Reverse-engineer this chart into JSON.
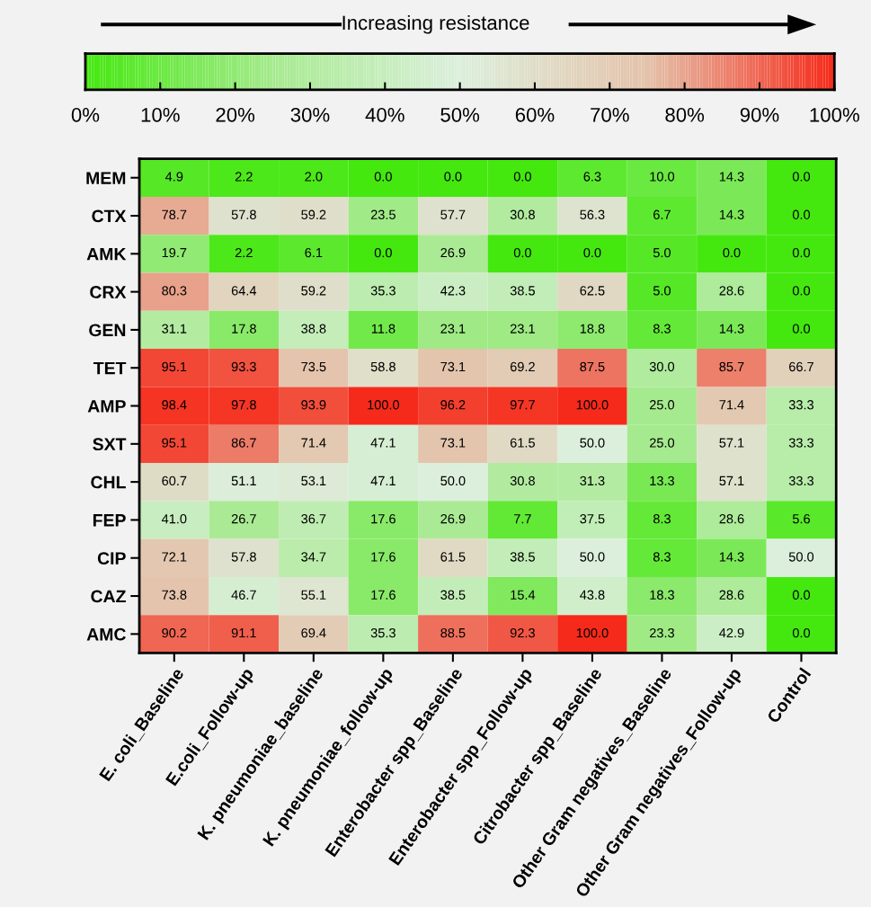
{
  "chart_data": {
    "type": "heatmap",
    "clabel": "Increasing resistance",
    "categories": [
      "E. coli_Baseline",
      "E.coli_Follow-up",
      "K. pneumoniae_baseline",
      "K. pneumoniae_follow-up",
      "Enterobacter spp_Baseline",
      "Enterobacter spp_Follow-up",
      "Citrobacter spp_Baseline",
      "Other Gram negatives_Baseline",
      "Other Gram negatives_Follow-up",
      "Control"
    ],
    "y_categories": [
      "MEM",
      "CTX",
      "AMK",
      "CRX",
      "GEN",
      "TET",
      "AMP",
      "SXT",
      "CHL",
      "FEP",
      "CIP",
      "CAZ",
      "AMC"
    ],
    "cells": [
      [
        4.9,
        2.2,
        2.0,
        0.0,
        0.0,
        0.0,
        6.3,
        10.0,
        14.3,
        0.0
      ],
      [
        78.7,
        57.8,
        59.2,
        23.5,
        57.7,
        30.8,
        56.3,
        6.7,
        14.3,
        0.0
      ],
      [
        19.7,
        2.2,
        6.1,
        0.0,
        26.9,
        0.0,
        0.0,
        5.0,
        0.0,
        0.0
      ],
      [
        80.3,
        64.4,
        59.2,
        35.3,
        42.3,
        38.5,
        62.5,
        5.0,
        28.6,
        0.0
      ],
      [
        31.1,
        17.8,
        38.8,
        11.8,
        23.1,
        23.1,
        18.8,
        8.3,
        14.3,
        0.0
      ],
      [
        95.1,
        93.3,
        73.5,
        58.8,
        73.1,
        69.2,
        87.5,
        30.0,
        85.7,
        66.7
      ],
      [
        98.4,
        97.8,
        93.9,
        100.0,
        96.2,
        97.7,
        100.0,
        25.0,
        71.4,
        33.3
      ],
      [
        95.1,
        86.7,
        71.4,
        47.1,
        73.1,
        61.5,
        50.0,
        25.0,
        57.1,
        33.3
      ],
      [
        60.7,
        51.1,
        53.1,
        47.1,
        50.0,
        30.8,
        31.3,
        13.3,
        57.1,
        33.3
      ],
      [
        41.0,
        26.7,
        36.7,
        17.6,
        26.9,
        7.7,
        37.5,
        8.3,
        28.6,
        5.6
      ],
      [
        72.1,
        57.8,
        34.7,
        17.6,
        61.5,
        38.5,
        50.0,
        8.3,
        14.3,
        50.0
      ],
      [
        73.8,
        46.7,
        55.1,
        17.6,
        38.5,
        15.4,
        43.8,
        18.3,
        28.6,
        0.0
      ],
      [
        90.2,
        91.1,
        69.4,
        35.3,
        88.5,
        92.3,
        100.0,
        23.3,
        42.9,
        0.0
      ]
    ],
    "cell_labels": [
      [
        "4.9",
        "2.2",
        "2.0",
        "0.0",
        "0.0",
        "0.0",
        "6.3",
        "10.0",
        "14.3",
        "0.0"
      ],
      [
        "78.7",
        "57.8",
        "59.2",
        "23.5",
        "57.7",
        "30.8",
        "56.3",
        "6.7",
        "14.3",
        "0.0"
      ],
      [
        "19.7",
        "2.2",
        "6.1",
        "0.0",
        "26.9",
        "0.0",
        "0.0",
        "5.0",
        "0.0",
        "0.0"
      ],
      [
        "80.3",
        "64.4",
        "59.2",
        "35.3",
        "42.3",
        "38.5",
        "62.5",
        "5.0",
        "28.6",
        "0.0"
      ],
      [
        "31.1",
        "17.8",
        "38.8",
        "11.8",
        "23.1",
        "23.1",
        "18.8",
        "8.3",
        "14.3",
        "0.0"
      ],
      [
        "95.1",
        "93.3",
        "73.5",
        "58.8",
        "73.1",
        "69.2",
        "87.5",
        "30.0",
        "85.7",
        "66.7"
      ],
      [
        "98.4",
        "97.8",
        "93.9",
        "100.0",
        "96.2",
        "97.7",
        "100.0",
        "25.0",
        "71.4",
        "33.3"
      ],
      [
        "95.1",
        "86.7",
        "71.4",
        "47.1",
        "73.1",
        "61.5",
        "50.0",
        "25.0",
        "57.1",
        "33.3"
      ],
      [
        "60.7",
        "51.1",
        "53.1",
        "47.1",
        "50.0",
        "30.8",
        "31.3",
        "13.3",
        "57.1",
        "33.3"
      ],
      [
        "41.0",
        "26.7",
        "36.7",
        "17.6",
        "26.9",
        "7.7",
        "37.5",
        "8.3",
        "28.6",
        "5.6"
      ],
      [
        "72.1",
        "57.8",
        "34.7",
        "17.6",
        "61.5",
        "38.5",
        "50.0",
        "8.3",
        "14.3",
        "50.0"
      ],
      [
        "73.8",
        "46.7",
        "55.1",
        "17.6",
        "38.5",
        "15.4",
        "43.8",
        "18.3",
        "28.6",
        "0.0"
      ],
      [
        "90.2",
        "91.1",
        "69.4",
        "35.3",
        "88.5",
        "92.3",
        "100.0",
        "23.3",
        "42.9",
        "0.0"
      ]
    ],
    "colors": [
      "#44e80f",
      "#a6ea8f",
      "#dcefdc",
      "#e4c2aa",
      "#f62a1a"
    ],
    "clim": [
      0,
      100
    ],
    "cticks": [
      {
        "value": 0,
        "label": "0%"
      },
      {
        "value": 10,
        "label": "10%"
      },
      {
        "value": 20,
        "label": "20%"
      },
      {
        "value": 30,
        "label": "30%"
      },
      {
        "value": 40,
        "label": "40%"
      },
      {
        "value": 50,
        "label": "50%"
      },
      {
        "value": 60,
        "label": "60%"
      },
      {
        "value": 70,
        "label": "70%"
      },
      {
        "value": 80,
        "label": "80%"
      },
      {
        "value": 90,
        "label": "90%"
      },
      {
        "value": 100,
        "label": "100%"
      }
    ]
  }
}
